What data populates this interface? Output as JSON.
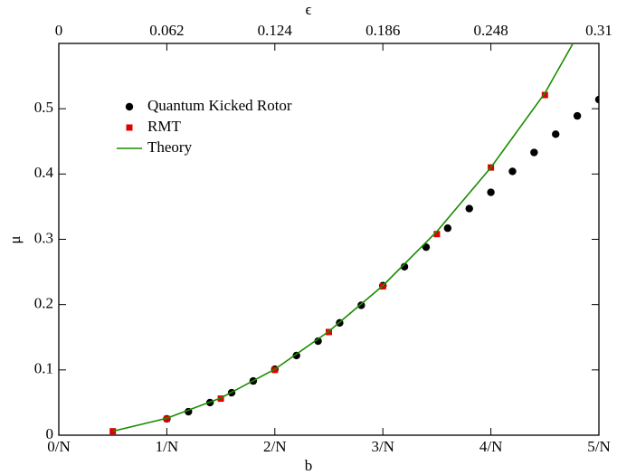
{
  "chart_data": {
    "type": "scatter",
    "xlabel": "b",
    "ylabel": "μ",
    "x2label": "ϵ",
    "xlim": [
      0,
      5
    ],
    "xticks": [
      {
        "value": 0,
        "label": "0/N"
      },
      {
        "value": 1,
        "label": "1/N"
      },
      {
        "value": 2,
        "label": "2/N"
      },
      {
        "value": 3,
        "label": "3/N"
      },
      {
        "value": 4,
        "label": "4/N"
      },
      {
        "value": 5,
        "label": "5/N"
      }
    ],
    "x2lim": [
      0,
      0.31
    ],
    "x2ticks": [
      0,
      0.062,
      0.124,
      0.186,
      0.248,
      0.31
    ],
    "ylim": [
      0,
      0.6
    ],
    "yticks": [
      0,
      0.1,
      0.2,
      0.3,
      0.4,
      0.5
    ],
    "legend": "upper left",
    "series": [
      {
        "name": "Quantum Kicked Rotor",
        "color": "#000000",
        "marker": "circle",
        "x": [
          1.0,
          1.2,
          1.4,
          1.6,
          1.8,
          2.0,
          2.2,
          2.4,
          2.6,
          2.8,
          3.0,
          3.2,
          3.4,
          3.6,
          3.8,
          4.0,
          4.2,
          4.4,
          4.6,
          4.8,
          5.0
        ],
        "values": [
          0.025,
          0.036,
          0.05,
          0.065,
          0.083,
          0.101,
          0.122,
          0.144,
          0.172,
          0.199,
          0.229,
          0.258,
          0.288,
          0.317,
          0.347,
          0.372,
          0.404,
          0.433,
          0.461,
          0.489,
          0.514
        ]
      },
      {
        "name": "RMT",
        "color": "#e00000",
        "marker": "square",
        "x": [
          0.5,
          1.0,
          1.5,
          2.0,
          2.5,
          3.0,
          3.5,
          4.0,
          4.5
        ],
        "values": [
          0.006,
          0.025,
          0.056,
          0.1,
          0.158,
          0.228,
          0.308,
          0.41,
          0.521
        ]
      },
      {
        "name": "Theory",
        "color": "#1a8c00",
        "marker": "line",
        "x": [
          0.5,
          1.0,
          1.5,
          2.0,
          2.5,
          3.0,
          3.5,
          4.0,
          4.5,
          4.76
        ],
        "values": [
          0.006,
          0.026,
          0.057,
          0.101,
          0.159,
          0.229,
          0.312,
          0.41,
          0.524,
          0.6
        ]
      }
    ]
  }
}
